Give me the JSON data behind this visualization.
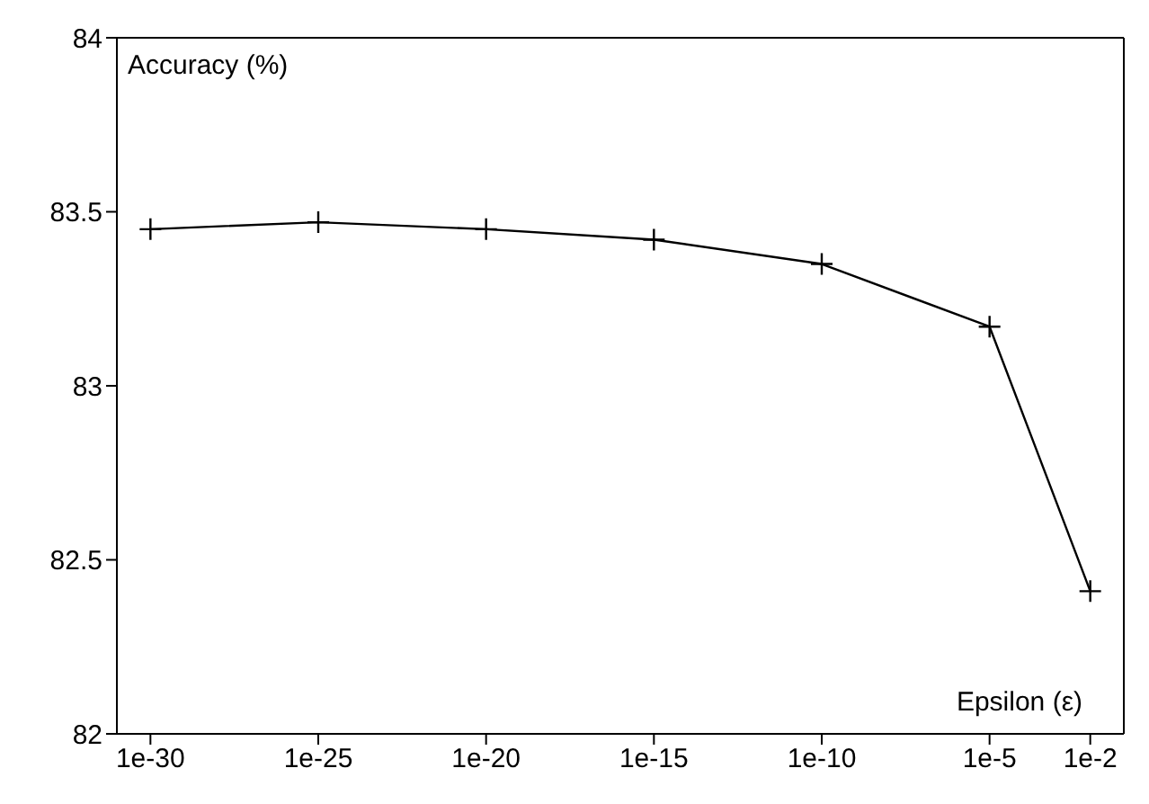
{
  "chart_data": {
    "type": "line",
    "xlabel": "Epsilon (ε)",
    "ylabel": "Accuracy (%)",
    "x": [
      1e-30,
      1e-25,
      1e-20,
      1e-15,
      1e-10,
      1e-05,
      0.01
    ],
    "series": [
      {
        "color": "#000000",
        "values": [
          83.45,
          83.47,
          83.45,
          83.42,
          83.35,
          83.17,
          82.41
        ]
      }
    ],
    "log": "x",
    "xlim": [
      1e-31,
      0.1
    ],
    "xticks": [
      1e-30,
      1e-25,
      1e-20,
      1e-15,
      1e-10,
      {
        "value": 1e-05,
        "label": "1e-5"
      },
      {
        "value": 0.01,
        "label": "1e-2"
      }
    ],
    "ylim": [
      82,
      84
    ],
    "yticks": [
      82,
      82.5,
      83,
      83.5,
      84
    ],
    "grid": false,
    "legend": false,
    "marker": "cross",
    "line_style": "solid"
  }
}
